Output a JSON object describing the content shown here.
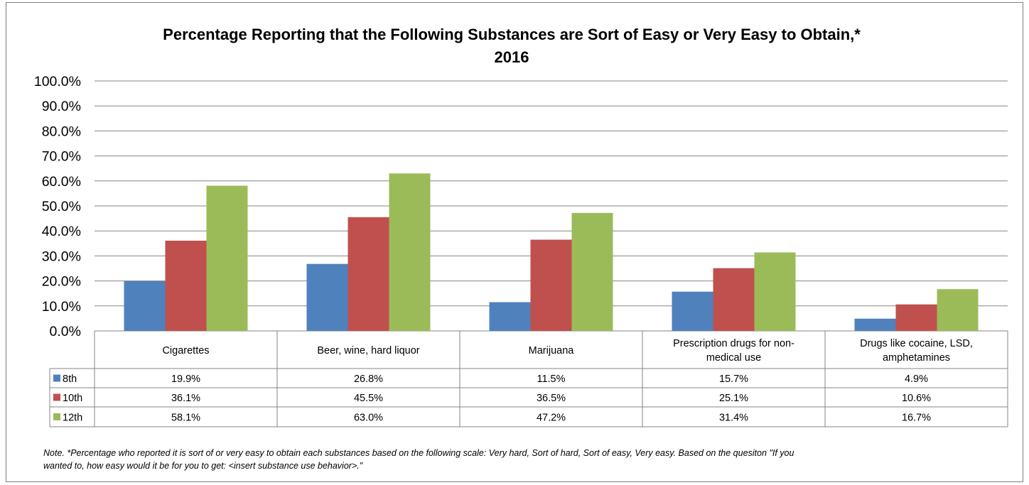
{
  "chart_data": {
    "type": "bar",
    "title": "Percentage Reporting that the Following Substances are Sort of Easy or Very Easy to Obtain,*",
    "subtitle": "2016",
    "categories": [
      "Cigarettes",
      "Beer, wine, hard liquor",
      "Marijuana",
      "Prescription drugs for non-medical use",
      "Drugs like cocaine, LSD, amphetamines"
    ],
    "category_lines": [
      [
        "Cigarettes"
      ],
      [
        "Beer, wine, hard liquor"
      ],
      [
        "Marijuana"
      ],
      [
        "Prescription drugs for non-",
        "medical use"
      ],
      [
        "Drugs like cocaine, LSD,",
        "amphetamines"
      ]
    ],
    "series": [
      {
        "name": "8th",
        "color": "#4f81bd",
        "values": [
          19.9,
          26.8,
          11.5,
          15.7,
          4.9
        ],
        "labels": [
          "19.9%",
          "26.8%",
          "11.5%",
          "15.7%",
          "4.9%"
        ]
      },
      {
        "name": "10th",
        "color": "#c0504d",
        "values": [
          36.1,
          45.5,
          36.5,
          25.1,
          10.6
        ],
        "labels": [
          "36.1%",
          "45.5%",
          "36.5%",
          "25.1%",
          "10.6%"
        ]
      },
      {
        "name": "12th",
        "color": "#9bbb59",
        "values": [
          58.1,
          63.0,
          47.2,
          31.4,
          16.7
        ],
        "labels": [
          "58.1%",
          "63.0%",
          "47.2%",
          "31.4%",
          "16.7%"
        ]
      }
    ],
    "ylim": [
      0,
      100
    ],
    "yticks": [
      "0.0%",
      "10.0%",
      "20.0%",
      "30.0%",
      "40.0%",
      "50.0%",
      "60.0%",
      "70.0%",
      "80.0%",
      "90.0%",
      "100.0%"
    ],
    "grid": true,
    "legend": "data-table"
  },
  "note": {
    "line1": "Note. *Percentage  who reported it is sort of or very easy to obtain  each substances based on the following scale: Very hard, Sort of hard, Sort of easy, Very easy.  Based on the quesiton \"If you",
    "line2": "wanted to, how easy would it be for you to get: <insert substance use behavior>.\""
  }
}
